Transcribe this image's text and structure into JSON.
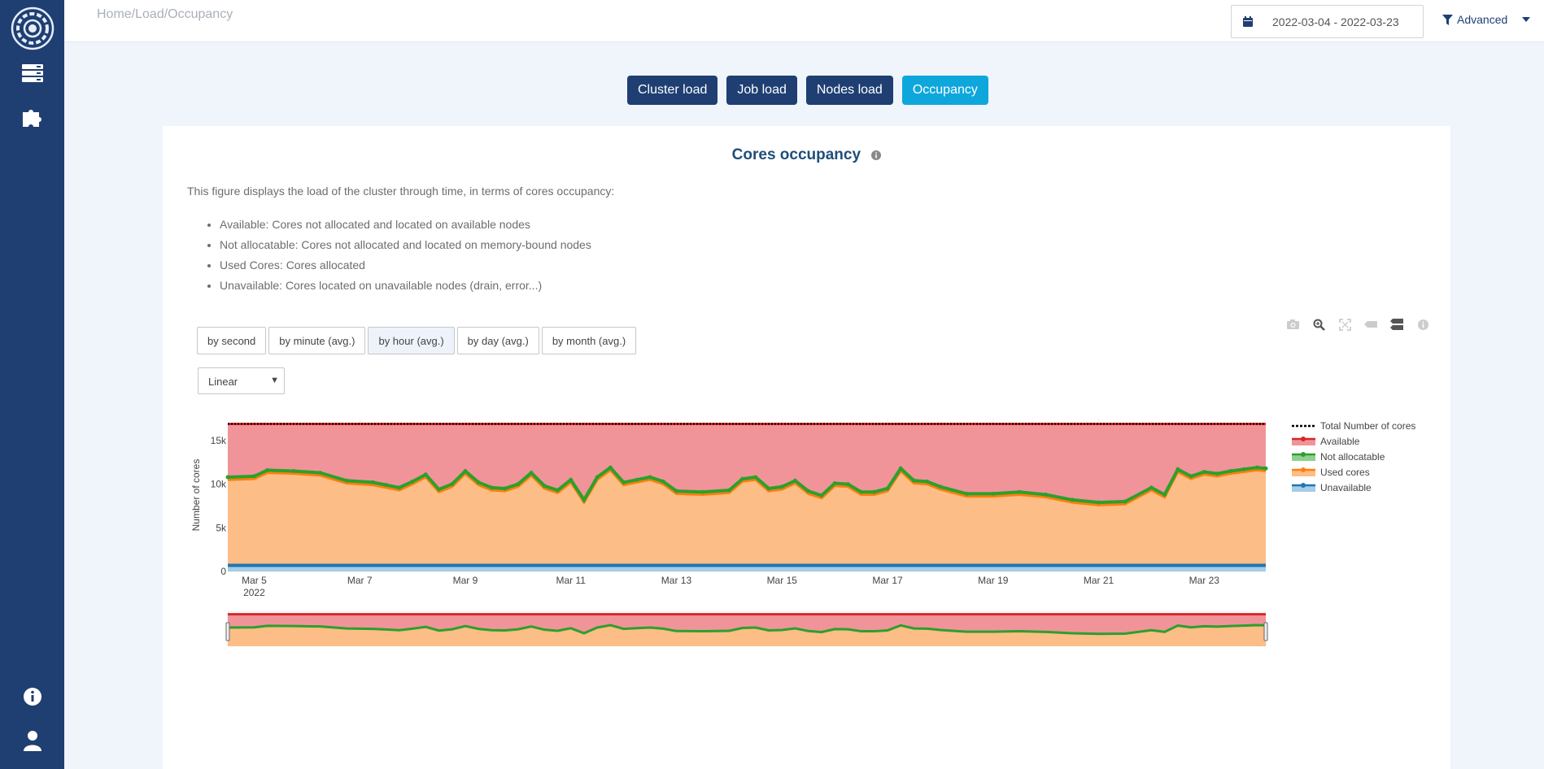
{
  "breadcrumb": "Home/Load/Occupancy",
  "date_range": "2022-03-04 - 2022-03-23",
  "advanced_label": "Advanced",
  "tabs": [
    {
      "label": "Cluster load",
      "active": false
    },
    {
      "label": "Job load",
      "active": false
    },
    {
      "label": "Nodes load",
      "active": false
    },
    {
      "label": "Occupancy",
      "active": true
    }
  ],
  "card": {
    "title": "Cores occupancy",
    "description": "This figure displays the load of the cluster through time, in terms of cores occupancy:",
    "bullets": [
      "Available: Cores not allocated and located on available nodes",
      "Not allocatable: Cores not allocated and located on memory-bound nodes",
      "Used Cores: Cores allocated",
      "Unavailable: Cores located on unavailable nodes (drain, error...)"
    ]
  },
  "range_buttons": [
    "by second",
    "by minute (avg.)",
    "by hour (avg.)",
    "by day (avg.)",
    "by month (avg.)"
  ],
  "active_range": "by hour (avg.)",
  "scale_select": {
    "value": "Linear"
  },
  "colors": {
    "sidebar": "#1f3f73",
    "accent": "#0ea7dc",
    "available": "#d62728",
    "not_allocatable": "#2ca02c",
    "used": "#ff7f0e",
    "unavailable": "#1f77b4"
  },
  "chart_data": {
    "type": "area",
    "ylabel": "Number of cores",
    "ylim": [
      0,
      17500
    ],
    "y_ticks": [
      {
        "v": 0,
        "label": "0"
      },
      {
        "v": 5000,
        "label": "5k"
      },
      {
        "v": 10000,
        "label": "10k"
      },
      {
        "v": 15000,
        "label": "15k"
      }
    ],
    "x_range": [
      "2022-03-04 12:00",
      "2022-03-24 04:00"
    ],
    "x_ticks": [
      {
        "date": "2022-03-05",
        "label": "Mar 5",
        "sub": "2022"
      },
      {
        "date": "2022-03-07",
        "label": "Mar 7"
      },
      {
        "date": "2022-03-09",
        "label": "Mar 9"
      },
      {
        "date": "2022-03-11",
        "label": "Mar 11"
      },
      {
        "date": "2022-03-13",
        "label": "Mar 13"
      },
      {
        "date": "2022-03-15",
        "label": "Mar 15"
      },
      {
        "date": "2022-03-17",
        "label": "Mar 17"
      },
      {
        "date": "2022-03-19",
        "label": "Mar 19"
      },
      {
        "date": "2022-03-21",
        "label": "Mar 21"
      },
      {
        "date": "2022-03-23",
        "label": "Mar 23"
      }
    ],
    "legend": [
      "Total Number of cores",
      "Available",
      "Not allocatable",
      "Used cores",
      "Unavailable"
    ],
    "total_cores": 16900,
    "unavailable": 700,
    "x": [
      "2022-03-04 12:00",
      "2022-03-05 00:00",
      "2022-03-05 06:00",
      "2022-03-05 18:00",
      "2022-03-06 06:00",
      "2022-03-06 18:00",
      "2022-03-07 06:00",
      "2022-03-07 12:00",
      "2022-03-07 18:00",
      "2022-03-08 00:00",
      "2022-03-08 06:00",
      "2022-03-08 12:00",
      "2022-03-08 18:00",
      "2022-03-09 00:00",
      "2022-03-09 06:00",
      "2022-03-09 12:00",
      "2022-03-09 18:00",
      "2022-03-10 00:00",
      "2022-03-10 06:00",
      "2022-03-10 12:00",
      "2022-03-10 18:00",
      "2022-03-11 00:00",
      "2022-03-11 06:00",
      "2022-03-11 12:00",
      "2022-03-11 18:00",
      "2022-03-12 00:00",
      "2022-03-12 06:00",
      "2022-03-12 12:00",
      "2022-03-12 18:00",
      "2022-03-13 00:00",
      "2022-03-13 12:00",
      "2022-03-14 00:00",
      "2022-03-14 06:00",
      "2022-03-14 12:00",
      "2022-03-14 18:00",
      "2022-03-15 00:00",
      "2022-03-15 06:00",
      "2022-03-15 12:00",
      "2022-03-15 18:00",
      "2022-03-16 00:00",
      "2022-03-16 06:00",
      "2022-03-16 12:00",
      "2022-03-16 18:00",
      "2022-03-17 00:00",
      "2022-03-17 06:00",
      "2022-03-17 12:00",
      "2022-03-17 18:00",
      "2022-03-18 00:00",
      "2022-03-18 12:00",
      "2022-03-19 00:00",
      "2022-03-19 12:00",
      "2022-03-20 00:00",
      "2022-03-20 12:00",
      "2022-03-21 00:00",
      "2022-03-21 12:00",
      "2022-03-22 00:00",
      "2022-03-22 06:00",
      "2022-03-22 12:00",
      "2022-03-22 18:00",
      "2022-03-23 00:00",
      "2022-03-23 06:00",
      "2022-03-23 12:00",
      "2022-03-23 18:00",
      "2022-03-24 00:00",
      "2022-03-24 04:00"
    ],
    "used_cores": [
      9800,
      9900,
      10600,
      10500,
      10300,
      9400,
      9200,
      8900,
      8600,
      9300,
      10100,
      8400,
      9000,
      10500,
      9200,
      8600,
      8500,
      9000,
      10300,
      8800,
      8300,
      9500,
      7200,
      9800,
      10900,
      9200,
      9500,
      9800,
      9300,
      8200,
      8100,
      8300,
      9600,
      9800,
      8500,
      8700,
      9400,
      8200,
      7700,
      9100,
      9000,
      8100,
      8100,
      8500,
      10800,
      9400,
      9300,
      8700,
      7900,
      7900,
      8100,
      7800,
      7200,
      6900,
      7000,
      8600,
      7800,
      10700,
      9900,
      10400,
      10200,
      10500,
      10700,
      10900,
      10800
    ],
    "not_allocatable": [
      300,
      300,
      300,
      300,
      300,
      300,
      300,
      300,
      300,
      300,
      300,
      300,
      300,
      300,
      300,
      300,
      300,
      300,
      300,
      300,
      300,
      300,
      300,
      300,
      300,
      300,
      300,
      300,
      300,
      300,
      300,
      300,
      300,
      300,
      300,
      300,
      300,
      300,
      300,
      300,
      300,
      300,
      300,
      300,
      300,
      300,
      300,
      300,
      300,
      300,
      300,
      300,
      300,
      300,
      300,
      300,
      300,
      300,
      300,
      300,
      300,
      300,
      300,
      300,
      300
    ]
  }
}
